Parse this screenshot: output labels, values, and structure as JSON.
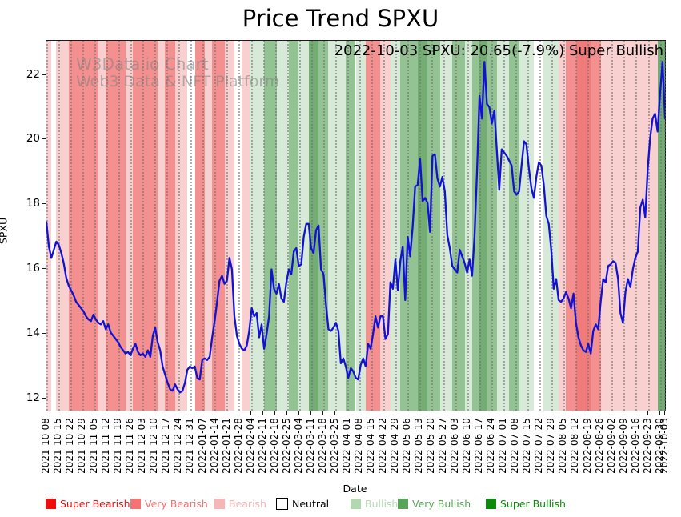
{
  "watermark": {
    "line1": "W3Data.io Chart",
    "line2": "Web3 Data & NFT Platform"
  },
  "legend": {
    "items": [
      {
        "label": "Super Bearish",
        "color": "#f20d0d",
        "text_color": "#f20d0d",
        "border": false
      },
      {
        "label": "Very Bearish",
        "color": "#f57373",
        "text_color": "#f57373",
        "border": false
      },
      {
        "label": "Bearish",
        "color": "#f7b6b6",
        "text_color": "#f7b6b6",
        "border": false
      },
      {
        "label": "Neutral",
        "color": "#ffffff",
        "text_color": "#000000",
        "border": true
      },
      {
        "label": "Bullish",
        "color": "#b2d8b2",
        "text_color": "#b2d8b2",
        "border": false
      },
      {
        "label": "Very Bullish",
        "color": "#57a557",
        "text_color": "#57a557",
        "border": false
      },
      {
        "label": "Super Bullish",
        "color": "#0b8a0b",
        "text_color": "#0b8a0b",
        "border": false
      }
    ]
  },
  "chart_data": {
    "type": "line",
    "title": "Price Trend SPXU",
    "annotation": "2022-10-03 SPXU: 20.65(-7.9%) Super Bullish",
    "xlabel": "Date",
    "ylabel": "SPXU",
    "series_name": "SPXU",
    "line_color": "#1212d1",
    "grid": "vertical-dotted-weekly",
    "ylim": [
      11.64,
      23.05
    ],
    "y_ticks": [
      12,
      14,
      16,
      18,
      20,
      22
    ],
    "x_tick_labels": [
      "2021-10-08",
      "2021-10-15",
      "2021-10-22",
      "2021-10-29",
      "2021-11-05",
      "2021-11-12",
      "2021-11-19",
      "2021-11-26",
      "2021-12-03",
      "2021-12-10",
      "2021-12-17",
      "2021-12-24",
      "2021-12-31",
      "2022-01-07",
      "2022-01-14",
      "2022-01-21",
      "2022-01-28",
      "2022-02-04",
      "2022-02-11",
      "2022-02-18",
      "2022-02-25",
      "2022-03-04",
      "2022-03-11",
      "2022-03-18",
      "2022-03-25",
      "2022-04-01",
      "2022-04-08",
      "2022-04-15",
      "2022-04-22",
      "2022-04-29",
      "2022-05-06",
      "2022-05-13",
      "2022-05-20",
      "2022-05-27",
      "2022-06-03",
      "2022-06-10",
      "2022-06-17",
      "2022-06-24",
      "2022-07-01",
      "2022-07-08",
      "2022-07-15",
      "2022-07-22",
      "2022-07-29",
      "2022-08-05",
      "2022-08-12",
      "2022-08-19",
      "2022-08-26",
      "2022-09-02",
      "2022-09-09",
      "2022-09-16",
      "2022-09-23",
      "2022-09-30",
      "2022-10-03"
    ],
    "x_range_days": 250,
    "last_point": {
      "date": "2022-10-03",
      "value": 20.65,
      "change_pct": -7.9,
      "sentiment": "Super Bullish"
    },
    "values_daily": [
      17.45,
      16.7,
      16.35,
      16.6,
      16.85,
      16.75,
      16.5,
      16.2,
      15.75,
      15.5,
      15.35,
      15.2,
      15.0,
      14.9,
      14.8,
      14.7,
      14.55,
      14.45,
      14.4,
      14.6,
      14.45,
      14.35,
      14.3,
      14.4,
      14.15,
      14.3,
      14.05,
      13.95,
      13.85,
      13.75,
      13.6,
      13.5,
      13.4,
      13.45,
      13.35,
      13.55,
      13.7,
      13.45,
      13.35,
      13.4,
      13.3,
      13.5,
      13.3,
      13.95,
      14.2,
      13.75,
      13.5,
      13.0,
      12.75,
      12.5,
      12.3,
      12.25,
      12.45,
      12.3,
      12.2,
      12.25,
      12.5,
      12.9,
      13.0,
      12.95,
      13.0,
      12.65,
      12.6,
      13.2,
      13.25,
      13.2,
      13.3,
      13.9,
      14.4,
      15.0,
      15.65,
      15.8,
      15.55,
      15.65,
      16.35,
      16.0,
      14.55,
      13.95,
      13.7,
      13.55,
      13.5,
      13.65,
      14.1,
      14.8,
      14.55,
      14.65,
      13.9,
      14.3,
      13.55,
      14.0,
      14.55,
      16.0,
      15.4,
      15.25,
      15.55,
      15.1,
      15.0,
      15.6,
      16.0,
      15.85,
      16.55,
      16.65,
      16.1,
      16.15,
      17.0,
      17.4,
      17.4,
      16.65,
      16.5,
      17.2,
      17.35,
      16.0,
      15.85,
      14.9,
      14.15,
      14.1,
      14.2,
      14.35,
      14.1,
      13.1,
      13.25,
      13.0,
      12.65,
      12.95,
      12.85,
      12.65,
      12.6,
      13.05,
      13.25,
      13.0,
      13.7,
      13.55,
      14.0,
      14.55,
      14.2,
      14.55,
      14.55,
      13.85,
      14.0,
      15.6,
      15.4,
      16.3,
      15.35,
      16.25,
      16.7,
      15.05,
      17.0,
      16.4,
      17.3,
      18.55,
      18.6,
      19.4,
      18.1,
      18.2,
      18.05,
      17.15,
      19.5,
      19.55,
      18.8,
      18.55,
      18.85,
      18.4,
      17.05,
      16.65,
      16.1,
      16.0,
      15.9,
      16.6,
      16.4,
      16.2,
      15.9,
      16.3,
      15.8,
      17.0,
      19.0,
      21.35,
      20.65,
      22.4,
      21.1,
      21.0,
      20.5,
      20.9,
      19.7,
      18.45,
      19.7,
      19.6,
      19.5,
      19.35,
      19.2,
      18.4,
      18.3,
      18.4,
      19.2,
      19.95,
      19.85,
      19.1,
      18.5,
      18.2,
      18.85,
      19.3,
      19.2,
      18.6,
      17.65,
      17.4,
      16.6,
      15.4,
      15.7,
      15.05,
      15.0,
      15.1,
      15.3,
      15.1,
      14.8,
      15.25,
      14.35,
      13.9,
      13.65,
      13.5,
      13.45,
      13.7,
      13.4,
      14.1,
      14.3,
      14.15,
      15.0,
      15.7,
      15.6,
      16.1,
      16.15,
      16.25,
      16.2,
      15.7,
      14.65,
      14.35,
      15.3,
      15.7,
      15.45,
      16.0,
      16.35,
      16.55,
      17.9,
      18.15,
      17.6,
      19.1,
      20.05,
      20.65,
      20.8,
      20.25,
      21.4,
      22.4,
      20.65
    ],
    "sentiment_bands": [
      [
        0,
        2,
        "bearish"
      ],
      [
        2,
        4,
        "neutral"
      ],
      [
        4,
        9,
        "bearish"
      ],
      [
        9,
        21,
        "very_bearish"
      ],
      [
        21,
        24,
        "bearish"
      ],
      [
        24,
        32,
        "very_bearish"
      ],
      [
        32,
        35,
        "bearish"
      ],
      [
        35,
        45,
        "very_bearish"
      ],
      [
        45,
        48,
        "bearish"
      ],
      [
        48,
        52,
        "very_bearish"
      ],
      [
        52,
        57,
        "bearish"
      ],
      [
        57,
        60,
        "neutral"
      ],
      [
        60,
        64,
        "very_bearish"
      ],
      [
        64,
        67,
        "bearish"
      ],
      [
        67,
        72,
        "very_bearish"
      ],
      [
        72,
        76,
        "bearish"
      ],
      [
        76,
        79,
        "neutral"
      ],
      [
        79,
        82,
        "bearish"
      ],
      [
        82,
        88,
        "bullish"
      ],
      [
        88,
        93,
        "very_bullish"
      ],
      [
        93,
        98,
        "bullish"
      ],
      [
        98,
        102,
        "very_bullish"
      ],
      [
        102,
        106,
        "bullish"
      ],
      [
        106,
        110,
        "super_bullish"
      ],
      [
        110,
        114,
        "very_bullish"
      ],
      [
        114,
        121,
        "bullish"
      ],
      [
        121,
        125,
        "very_bullish"
      ],
      [
        125,
        129,
        "bullish"
      ],
      [
        129,
        135,
        "very_bearish"
      ],
      [
        135,
        139,
        "bearish"
      ],
      [
        139,
        143,
        "bullish"
      ],
      [
        143,
        150,
        "very_bullish"
      ],
      [
        150,
        154,
        "super_bullish"
      ],
      [
        154,
        159,
        "very_bullish"
      ],
      [
        159,
        164,
        "bullish"
      ],
      [
        164,
        169,
        "very_bullish"
      ],
      [
        169,
        172,
        "bullish"
      ],
      [
        172,
        175,
        "very_bullish"
      ],
      [
        175,
        178,
        "super_bullish"
      ],
      [
        178,
        182,
        "very_bullish"
      ],
      [
        182,
        187,
        "bullish"
      ],
      [
        187,
        191,
        "very_bullish"
      ],
      [
        191,
        197,
        "bullish"
      ],
      [
        197,
        201,
        "neutral"
      ],
      [
        201,
        207,
        "bullish"
      ],
      [
        207,
        210,
        "bearish"
      ],
      [
        210,
        214,
        "very_bearish"
      ],
      [
        214,
        220,
        "super_bearish"
      ],
      [
        220,
        224,
        "very_bearish"
      ],
      [
        224,
        247,
        "bearish"
      ],
      [
        247,
        250,
        "super_bullish"
      ]
    ],
    "sentiment_colors": {
      "super_bearish": "#ef7b7b",
      "very_bearish": "#f49090",
      "bearish": "#f9d0d0",
      "neutral": "#ffffff",
      "bullish": "#d7ead7",
      "very_bullish": "#93c293",
      "super_bullish": "#74ad74"
    }
  }
}
